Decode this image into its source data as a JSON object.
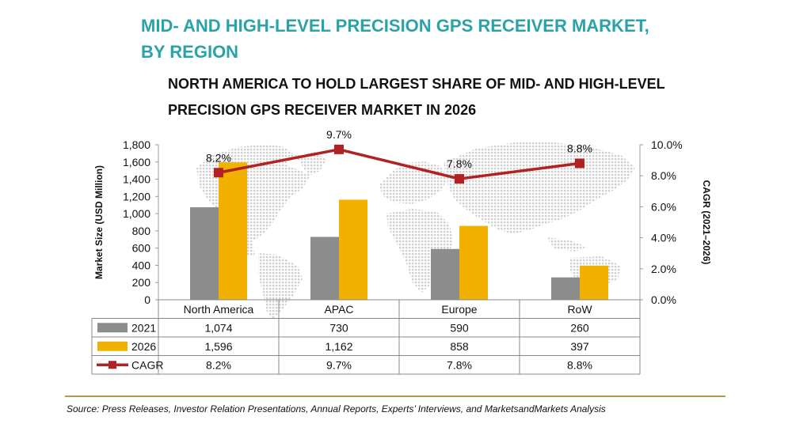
{
  "header": {
    "title_line1": "MID- AND HIGH-LEVEL PRECISION GPS RECEIVER MARKET,",
    "title_line2": "BY REGION",
    "subtitle_line1": "NORTH AMERICA TO HOLD LARGEST SHARE OF MID- AND HIGH-LEVEL",
    "subtitle_line2": "PRECISION GPS RECEIVER MARKET IN 2026"
  },
  "source": "Source: Press Releases, Investor Relation Presentations, Annual Reports, Experts’ Interviews, and MarketsandMarkets Analysis",
  "colors": {
    "title": "#2aa3a8",
    "bar_2021": "#8c8c8c",
    "bar_2026": "#f2b100",
    "cagr_line": "#b22222",
    "map_dots": "#d0d0d0",
    "source_rule": "#b49a4e"
  },
  "chart_data": {
    "type": "bar",
    "categories": [
      "North America",
      "APAC",
      "Europe",
      "RoW"
    ],
    "series": [
      {
        "name": "2021",
        "type": "bar",
        "values": [
          1074,
          730,
          590,
          260
        ],
        "display": [
          "1,074",
          "730",
          "590",
          "260"
        ]
      },
      {
        "name": "2026",
        "type": "bar",
        "values": [
          1596,
          1162,
          858,
          397
        ],
        "display": [
          "1,596",
          "1,162",
          "858",
          "397"
        ]
      },
      {
        "name": "CAGR",
        "type": "line",
        "axis": "right",
        "values": [
          8.2,
          9.7,
          7.8,
          8.8
        ],
        "display": [
          "8.2%",
          "9.7%",
          "7.8%",
          "8.8%"
        ]
      }
    ],
    "ylabel": "Market Size (USD Million)",
    "y2label": "CAGR (2021–2026)",
    "ylim": [
      0,
      1800
    ],
    "y2lim": [
      0,
      10
    ],
    "yticks": [
      0,
      200,
      400,
      600,
      800,
      1000,
      1200,
      1400,
      1600,
      1800
    ],
    "ytick_labels": [
      "0",
      "200",
      "400",
      "600",
      "800",
      "1,000",
      "1,200",
      "1,400",
      "1,600",
      "1,800"
    ],
    "y2ticks": [
      0,
      2,
      4,
      6,
      8,
      10
    ],
    "y2tick_labels": [
      "0.0%",
      "2.0%",
      "4.0%",
      "6.0%",
      "8.0%",
      "10.0%"
    ],
    "data_table": true,
    "background": "world map"
  }
}
